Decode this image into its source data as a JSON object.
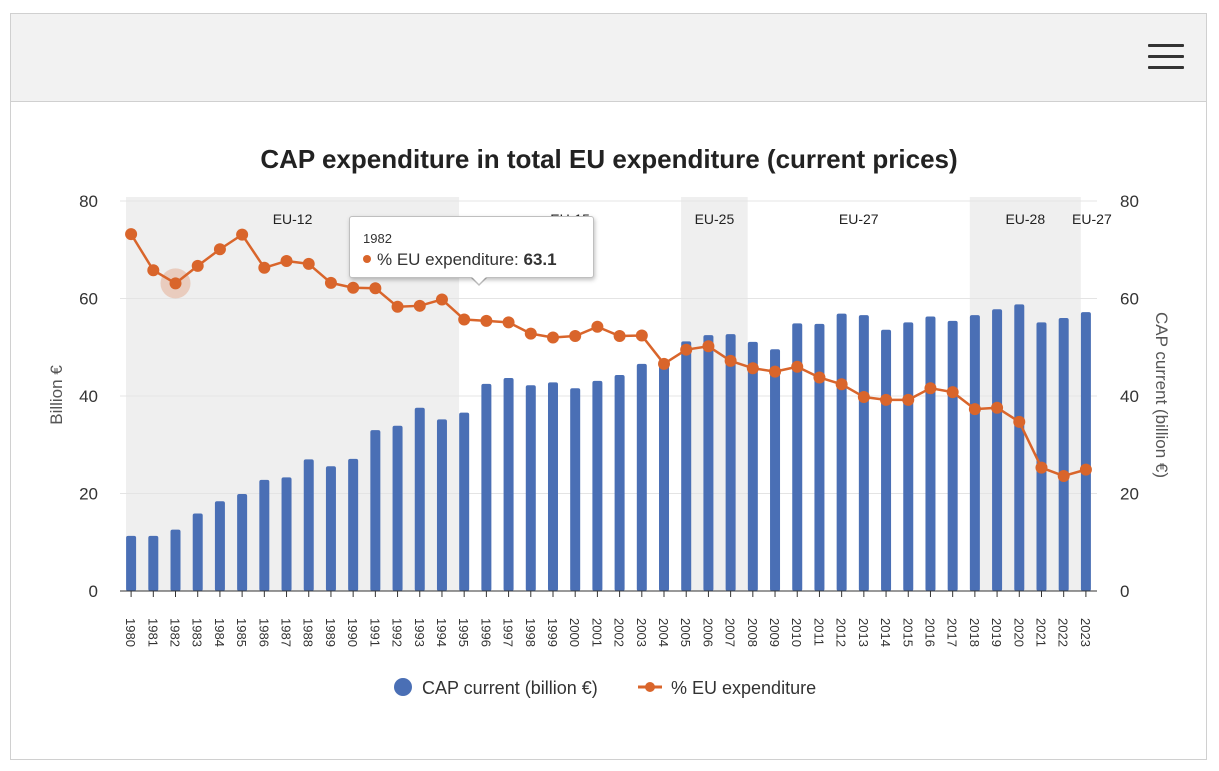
{
  "header": {
    "menu_icon": "hamburger-menu-icon"
  },
  "chart_data": {
    "type": "bar",
    "title": "CAP expenditure in total EU expenditure (current prices)",
    "xlabel": "",
    "ylabel": "Billion €",
    "y2label": "CAP current (billion €)",
    "ylim": [
      0,
      80
    ],
    "y2lim": [
      0,
      80
    ],
    "yticks": [
      "0",
      "20",
      "40",
      "60",
      "80"
    ],
    "categories": [
      "1980",
      "1981",
      "1982",
      "1983",
      "1984",
      "1985",
      "1986",
      "1987",
      "1988",
      "1989",
      "1990",
      "1991",
      "1992",
      "1993",
      "1994",
      "1995",
      "1996",
      "1997",
      "1998",
      "1999",
      "2000",
      "2001",
      "2002",
      "2003",
      "2004",
      "2005",
      "2006",
      "2007",
      "2008",
      "2009",
      "2010",
      "2011",
      "2012",
      "2013",
      "2014",
      "2015",
      "2016",
      "2017",
      "2018",
      "2019",
      "2020",
      "2021",
      "2022",
      "2023"
    ],
    "series": [
      {
        "name": "CAP current (billion €)",
        "type": "bar",
        "color": "#4a6fb5",
        "values": [
          11.3,
          11.3,
          12.6,
          15.9,
          18.4,
          19.9,
          22.8,
          23.3,
          27.0,
          25.6,
          27.1,
          33.0,
          33.9,
          37.6,
          35.2,
          36.6,
          42.5,
          43.7,
          42.2,
          42.8,
          41.6,
          43.1,
          44.3,
          46.6,
          47.3,
          51.2,
          52.5,
          52.7,
          51.1,
          49.6,
          54.9,
          54.8,
          56.9,
          56.6,
          53.6,
          55.1,
          56.3,
          55.4,
          56.6,
          57.8,
          58.8,
          55.1,
          56.0,
          57.2
        ]
      },
      {
        "name": "% EU expenditure",
        "type": "line",
        "color": "#d9652b",
        "values": [
          73.2,
          65.8,
          63.1,
          66.7,
          70.1,
          73.1,
          66.3,
          67.7,
          67.1,
          63.2,
          62.2,
          62.1,
          58.3,
          58.5,
          59.8,
          55.7,
          55.4,
          55.1,
          52.8,
          52.0,
          52.3,
          54.2,
          52.3,
          52.4,
          46.6,
          49.5,
          50.2,
          47.2,
          45.7,
          45.0,
          46.0,
          43.8,
          42.4,
          39.8,
          39.2,
          39.2,
          41.6,
          40.8,
          37.3,
          37.6,
          34.7,
          25.3,
          23.6,
          24.9
        ]
      }
    ],
    "bands": [
      {
        "label": "EU-12",
        "from": "1980",
        "to": "1994",
        "shaded": true
      },
      {
        "label": "EU-15",
        "from": "1995",
        "to": "2004",
        "shaded": false
      },
      {
        "label": "EU-25",
        "from": "2005",
        "to": "2007",
        "shaded": true
      },
      {
        "label": "EU-27",
        "from": "2008",
        "to": "2017",
        "shaded": false
      },
      {
        "label": "EU-28",
        "from": "2018",
        "to": "2022",
        "shaded": true
      },
      {
        "label": "EU-27",
        "from": "2023",
        "to": "2023",
        "shaded": false
      }
    ],
    "legend": {
      "placement": "bottom-center"
    },
    "grid": true,
    "tooltip": {
      "year": "1982",
      "label": "% EU expenditure:",
      "value": "63.1",
      "highlight_index": 2
    }
  }
}
